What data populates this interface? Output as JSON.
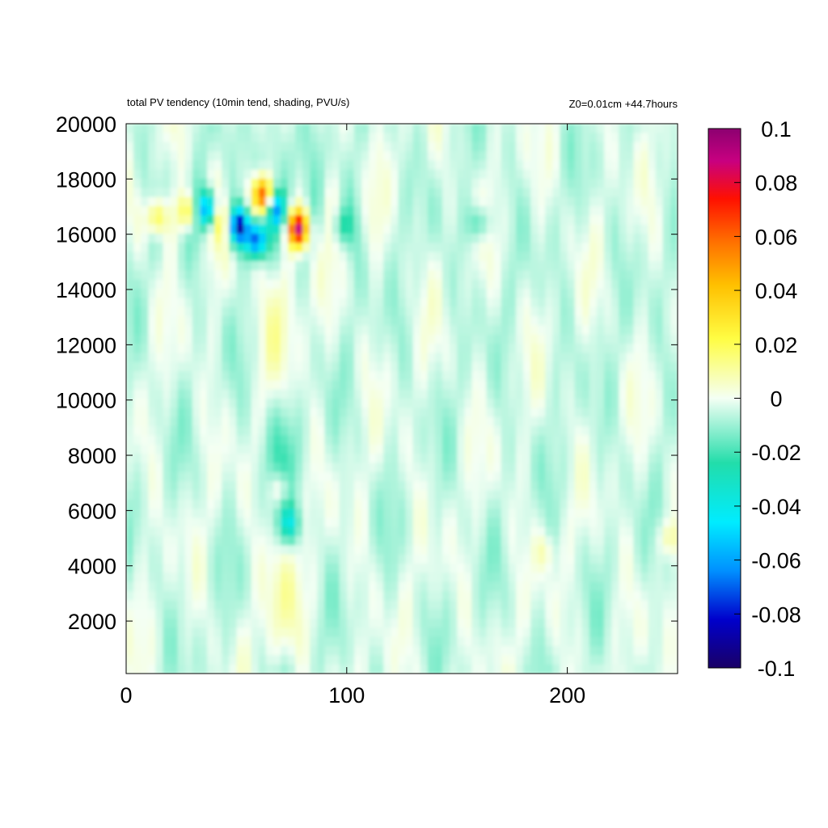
{
  "chart_data": {
    "type": "heatmap",
    "title": "total PV tendency (10min tend, shading, PVU/s)",
    "subtitle": "Z0=0.01cm   +44.7hours",
    "xlabel": "",
    "ylabel": "",
    "xlim": [
      0,
      250
    ],
    "ylim": [
      100,
      20000
    ],
    "x_ticks": [
      0,
      100,
      200
    ],
    "y_ticks": [
      2000,
      4000,
      6000,
      8000,
      10000,
      12000,
      14000,
      16000,
      18000,
      20000
    ],
    "colorbar": {
      "range": [
        -0.1,
        0.1
      ],
      "ticks": [
        0.1,
        0.08,
        0.06,
        0.04,
        0.02,
        0,
        -0.02,
        -0.04,
        -0.06,
        -0.08,
        -0.1
      ],
      "tick_labels": [
        "0.1",
        "0.08",
        "0.06",
        "0.04",
        "0.02",
        "0",
        "-0.02",
        "-0.04",
        "-0.06",
        "-0.08",
        "-0.1"
      ],
      "colors": [
        "#1a0066",
        "#0000cc",
        "#0090ff",
        "#00ecff",
        "#22ddaa",
        "#f4fff4",
        "#fffd44",
        "#ffc000",
        "#ff7000",
        "#ff1000",
        "#c80080",
        "#8c0070"
      ]
    },
    "features": [
      {
        "x": 78,
        "y": 16200,
        "value": 0.09
      },
      {
        "x": 62,
        "y": 17400,
        "value": 0.07
      },
      {
        "x": 51,
        "y": 16300,
        "value": -0.08
      },
      {
        "x": 59,
        "y": 15800,
        "value": -0.07
      },
      {
        "x": 37,
        "y": 16900,
        "value": -0.06
      },
      {
        "x": 68,
        "y": 16900,
        "value": -0.05
      },
      {
        "x": 28,
        "y": 16800,
        "value": 0.03
      },
      {
        "x": 14,
        "y": 16600,
        "value": 0.03
      },
      {
        "x": 43,
        "y": 16500,
        "value": 0.02
      },
      {
        "x": 70,
        "y": 6800,
        "value": 0.02
      },
      {
        "x": 74,
        "y": 5500,
        "value": -0.03
      },
      {
        "x": 98,
        "y": 16300,
        "value": -0.02
      },
      {
        "x": 160,
        "y": 16400,
        "value": -0.02
      },
      {
        "x": 190,
        "y": 4500,
        "value": 0.01
      },
      {
        "x": 246,
        "y": 5000,
        "value": 0.015
      }
    ]
  }
}
